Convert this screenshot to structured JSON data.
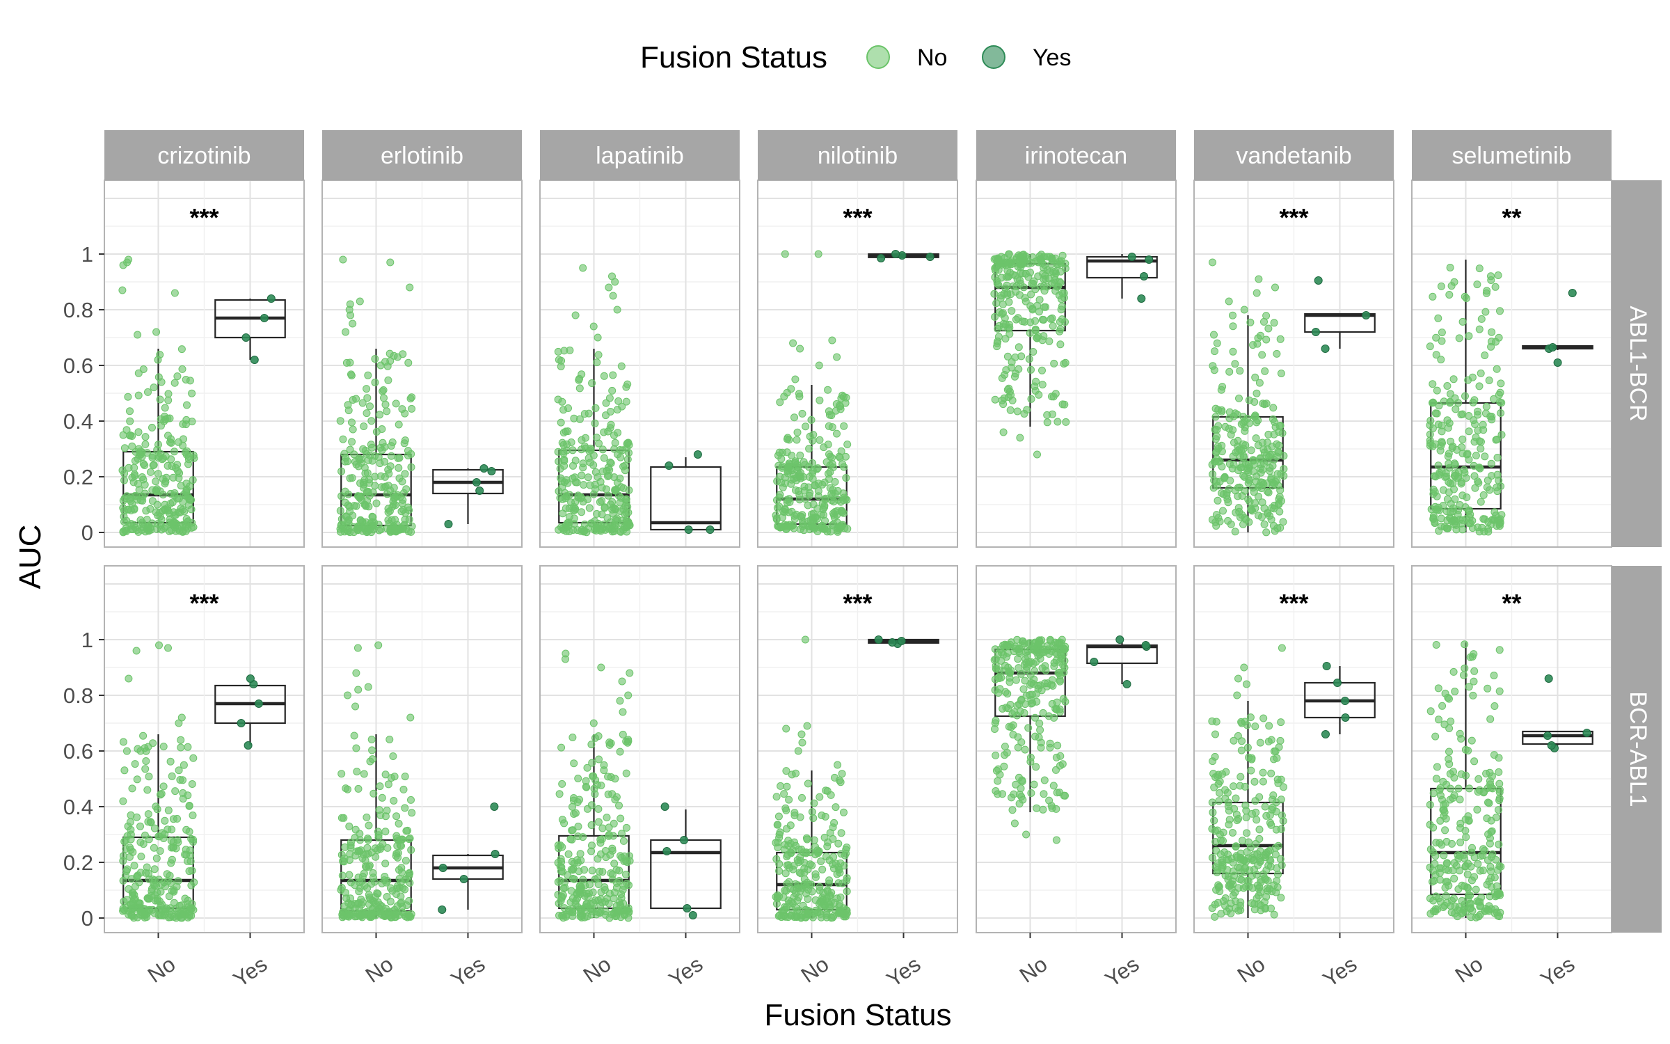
{
  "chart_data": {
    "type": "boxplot-jitter",
    "xlabel": "Fusion Status",
    "ylabel": "AUC",
    "ylim": [
      -0.05,
      1.25
    ],
    "yticks": [
      0,
      0.2,
      0.4,
      0.6,
      0.8,
      1
    ],
    "ytick_labels": [
      "0",
      "0.2",
      "0.4",
      "0.6",
      "0.8",
      "1"
    ],
    "categories": [
      "No",
      "Yes"
    ],
    "legend": {
      "title": "Fusion Status",
      "placement": "top",
      "entries": [
        {
          "label": "No",
          "color": "#6cc46a"
        },
        {
          "label": "Yes",
          "color": "#2e8b57"
        }
      ]
    },
    "columns": [
      "crizotinib",
      "erlotinib",
      "lapatinib",
      "nilotinib",
      "irinotecan",
      "vandetanib",
      "selumetinib"
    ],
    "rows": [
      "ABL1-BCR",
      "BCR-ABL1"
    ],
    "colors": {
      "no_points": "#6cc46a",
      "yes_points": "#2e8b57",
      "strip": "#a6a6a6",
      "grid": "#e4e4e4",
      "box": "#262626"
    },
    "panels": [
      {
        "row": "ABL1-BCR",
        "drug": "crizotinib",
        "sig": "***",
        "no": {
          "whisker": [
            0.0,
            0.66
          ],
          "q1": 0.035,
          "median": 0.135,
          "q3": 0.29,
          "outliers": [
            0.72,
            0.71,
            0.86,
            0.87,
            0.96,
            0.97,
            0.98
          ]
        },
        "yes": {
          "whisker": [
            0.62,
            0.84
          ],
          "q1": 0.7,
          "median": 0.77,
          "q3": 0.835,
          "points": [
            0.62,
            0.7,
            0.77,
            0.84
          ]
        }
      },
      {
        "row": "ABL1-BCR",
        "drug": "erlotinib",
        "sig": "",
        "no": {
          "whisker": [
            0.0,
            0.66
          ],
          "q1": 0.025,
          "median": 0.135,
          "q3": 0.28,
          "outliers": [
            0.72,
            0.75,
            0.78,
            0.8,
            0.82,
            0.83,
            0.88,
            0.97,
            0.98
          ]
        },
        "yes": {
          "whisker": [
            0.03,
            0.23
          ],
          "q1": 0.14,
          "median": 0.18,
          "q3": 0.225,
          "points": [
            0.03,
            0.15,
            0.18,
            0.22,
            0.23
          ]
        }
      },
      {
        "row": "ABL1-BCR",
        "drug": "lapatinib",
        "sig": "",
        "no": {
          "whisker": [
            0.0,
            0.66
          ],
          "q1": 0.035,
          "median": 0.135,
          "q3": 0.295,
          "outliers": [
            0.7,
            0.74,
            0.78,
            0.8,
            0.85,
            0.88,
            0.9,
            0.92,
            0.95
          ]
        },
        "yes": {
          "whisker": [
            0.01,
            0.27
          ],
          "q1": 0.01,
          "median": 0.035,
          "q3": 0.235,
          "points": [
            0.01,
            0.01,
            0.24,
            0.28
          ]
        }
      },
      {
        "row": "ABL1-BCR",
        "drug": "nilotinib",
        "sig": "***",
        "no": {
          "whisker": [
            0.0,
            0.53
          ],
          "q1": 0.03,
          "median": 0.12,
          "q3": 0.235,
          "outliers": [
            0.55,
            0.6,
            0.63,
            0.66,
            0.68,
            0.69,
            1.0,
            1.0
          ]
        },
        "yes": {
          "whisker": [
            0.985,
            1.0
          ],
          "q1": 0.988,
          "median": 0.995,
          "q3": 1.0,
          "points": [
            0.985,
            0.99,
            0.995,
            1.0
          ]
        }
      },
      {
        "row": "ABL1-BCR",
        "drug": "irinotecan",
        "sig": "",
        "no": {
          "whisker": [
            0.38,
            1.0
          ],
          "q1": 0.725,
          "median": 0.88,
          "q3": 0.965,
          "outliers": [
            0.34,
            0.36,
            0.28
          ]
        },
        "yes": {
          "whisker": [
            0.84,
            1.0
          ],
          "q1": 0.915,
          "median": 0.975,
          "q3": 0.99,
          "points": [
            0.84,
            0.92,
            0.98,
            0.99
          ]
        }
      },
      {
        "row": "ABL1-BCR",
        "drug": "vandetanib",
        "sig": "***",
        "no": {
          "whisker": [
            0.0,
            0.78
          ],
          "q1": 0.16,
          "median": 0.26,
          "q3": 0.415,
          "outliers": [
            0.8,
            0.83,
            0.86,
            0.88,
            0.91,
            0.97
          ]
        },
        "yes": {
          "whisker": [
            0.66,
            0.785
          ],
          "q1": 0.72,
          "median": 0.78,
          "q3": 0.785,
          "points": [
            0.66,
            0.72,
            0.78,
            0.905
          ]
        }
      },
      {
        "row": "ABL1-BCR",
        "drug": "selumetinib",
        "sig": "**",
        "no": {
          "whisker": [
            0.0,
            0.98
          ],
          "q1": 0.085,
          "median": 0.235,
          "q3": 0.465,
          "outliers": []
        },
        "yes": {
          "whisker": [
            0.655,
            0.67
          ],
          "q1": 0.66,
          "median": 0.665,
          "q3": 0.67,
          "points": [
            0.61,
            0.66,
            0.665,
            0.86
          ]
        }
      },
      {
        "row": "BCR-ABL1",
        "drug": "crizotinib",
        "sig": "***",
        "no": {
          "whisker": [
            0.0,
            0.66
          ],
          "q1": 0.035,
          "median": 0.135,
          "q3": 0.29,
          "outliers": [
            0.7,
            0.72,
            0.86,
            0.96,
            0.97,
            0.98
          ]
        },
        "yes": {
          "whisker": [
            0.62,
            0.84
          ],
          "q1": 0.7,
          "median": 0.77,
          "q3": 0.835,
          "points": [
            0.62,
            0.7,
            0.77,
            0.84,
            0.86
          ]
        }
      },
      {
        "row": "BCR-ABL1",
        "drug": "erlotinib",
        "sig": "",
        "no": {
          "whisker": [
            0.0,
            0.66
          ],
          "q1": 0.025,
          "median": 0.135,
          "q3": 0.28,
          "outliers": [
            0.72,
            0.76,
            0.8,
            0.82,
            0.83,
            0.88,
            0.97,
            0.98
          ]
        },
        "yes": {
          "whisker": [
            0.03,
            0.23
          ],
          "q1": 0.14,
          "median": 0.18,
          "q3": 0.225,
          "points": [
            0.03,
            0.14,
            0.18,
            0.23,
            0.4
          ]
        }
      },
      {
        "row": "BCR-ABL1",
        "drug": "lapatinib",
        "sig": "",
        "no": {
          "whisker": [
            0.0,
            0.66
          ],
          "q1": 0.035,
          "median": 0.135,
          "q3": 0.295,
          "outliers": [
            0.7,
            0.74,
            0.78,
            0.8,
            0.85,
            0.88,
            0.9,
            0.93,
            0.95
          ]
        },
        "yes": {
          "whisker": [
            0.03,
            0.39
          ],
          "q1": 0.035,
          "median": 0.235,
          "q3": 0.28,
          "points": [
            0.01,
            0.035,
            0.24,
            0.28,
            0.4
          ]
        }
      },
      {
        "row": "BCR-ABL1",
        "drug": "nilotinib",
        "sig": "***",
        "no": {
          "whisker": [
            0.0,
            0.53
          ],
          "q1": 0.03,
          "median": 0.12,
          "q3": 0.235,
          "outliers": [
            0.55,
            0.6,
            0.63,
            0.66,
            0.68,
            0.69,
            1.0
          ]
        },
        "yes": {
          "whisker": [
            0.985,
            1.0
          ],
          "q1": 0.988,
          "median": 0.995,
          "q3": 1.0,
          "points": [
            0.985,
            0.99,
            0.995,
            1.0
          ]
        }
      },
      {
        "row": "BCR-ABL1",
        "drug": "irinotecan",
        "sig": "",
        "no": {
          "whisker": [
            0.38,
            1.0
          ],
          "q1": 0.725,
          "median": 0.88,
          "q3": 0.965,
          "outliers": [
            0.34,
            0.3,
            0.28
          ]
        },
        "yes": {
          "whisker": [
            0.84,
            0.99
          ],
          "q1": 0.915,
          "median": 0.975,
          "q3": 0.98,
          "points": [
            0.84,
            0.92,
            0.975,
            0.98,
            1.0
          ]
        }
      },
      {
        "row": "BCR-ABL1",
        "drug": "vandetanib",
        "sig": "***",
        "no": {
          "whisker": [
            0.0,
            0.78
          ],
          "q1": 0.16,
          "median": 0.26,
          "q3": 0.415,
          "outliers": [
            0.8,
            0.84,
            0.86,
            0.9,
            0.97
          ]
        },
        "yes": {
          "whisker": [
            0.66,
            0.905
          ],
          "q1": 0.72,
          "median": 0.78,
          "q3": 0.845,
          "points": [
            0.66,
            0.72,
            0.78,
            0.845,
            0.905
          ]
        }
      },
      {
        "row": "BCR-ABL1",
        "drug": "selumetinib",
        "sig": "**",
        "no": {
          "whisker": [
            0.0,
            0.99
          ],
          "q1": 0.085,
          "median": 0.235,
          "q3": 0.465,
          "outliers": []
        },
        "yes": {
          "whisker": [
            0.62,
            0.67
          ],
          "q1": 0.625,
          "median": 0.655,
          "q3": 0.67,
          "points": [
            0.61,
            0.62,
            0.655,
            0.665,
            0.86
          ]
        }
      }
    ]
  }
}
